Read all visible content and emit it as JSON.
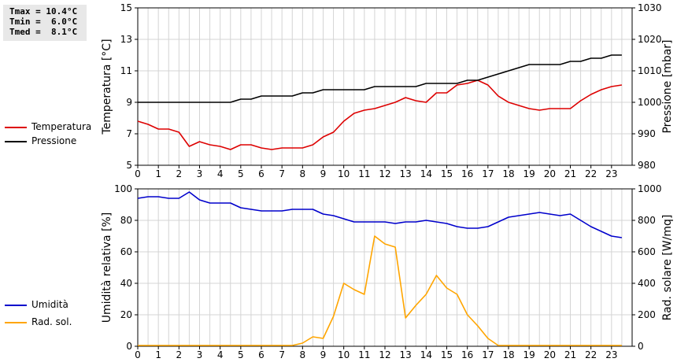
{
  "stats": {
    "tmax": "Tmax = 10.4°C",
    "tmin": "Tmin =  6.0°C",
    "tmed": "Tmed =  8.1°C"
  },
  "legend_top": [
    {
      "label": "Temperatura",
      "color": "#dd0000"
    },
    {
      "label": "Pressione",
      "color": "#000000"
    }
  ],
  "legend_bottom": [
    {
      "label": "Umidità",
      "color": "#0000cc"
    },
    {
      "label": "Rad. sol.",
      "color": "#ffa500"
    }
  ],
  "chart_data": [
    {
      "type": "line",
      "ylabel_left": "Temperatura [°C]",
      "ylabel_right": "Pressione [mbar]",
      "xlim": [
        0,
        24
      ],
      "xticks": [
        0,
        1,
        2,
        3,
        4,
        5,
        6,
        7,
        8,
        9,
        10,
        11,
        12,
        13,
        14,
        15,
        16,
        17,
        18,
        19,
        20,
        21,
        22,
        23
      ],
      "ylim_left": [
        5,
        15
      ],
      "yticks_left": [
        5,
        7,
        9,
        11,
        13,
        15
      ],
      "ylim_right": [
        980,
        1030
      ],
      "yticks_right": [
        980,
        990,
        1000,
        1010,
        1020,
        1030
      ],
      "grid": true,
      "series": [
        {
          "name": "Temperatura",
          "axis": "left",
          "color": "#dd0000",
          "x": [
            0,
            0.5,
            1,
            1.5,
            2,
            2.5,
            3,
            3.5,
            4,
            4.5,
            5,
            5.5,
            6,
            6.5,
            7,
            7.5,
            8,
            8.5,
            9,
            9.5,
            10,
            10.5,
            11,
            11.5,
            12,
            12.5,
            13,
            13.5,
            14,
            14.5,
            15,
            15.5,
            16,
            16.5,
            17,
            17.5,
            18,
            18.5,
            19,
            19.5,
            20,
            20.5,
            21,
            21.5,
            22,
            22.5,
            23,
            23.5
          ],
          "y": [
            7.8,
            7.6,
            7.3,
            7.3,
            7.1,
            6.2,
            6.5,
            6.3,
            6.2,
            6.0,
            6.3,
            6.3,
            6.1,
            6.0,
            6.1,
            6.1,
            6.1,
            6.3,
            6.8,
            7.1,
            7.8,
            8.3,
            8.5,
            8.6,
            8.8,
            9.0,
            9.3,
            9.1,
            9.0,
            9.6,
            9.6,
            10.1,
            10.2,
            10.4,
            10.1,
            9.4,
            9.0,
            8.8,
            8.6,
            8.5,
            8.6,
            8.6,
            8.6,
            9.1,
            9.5,
            9.8,
            10.0,
            10.1
          ]
        },
        {
          "name": "Pressione",
          "axis": "right",
          "color": "#000000",
          "x": [
            0,
            0.5,
            1,
            1.5,
            2,
            2.5,
            3,
            3.5,
            4,
            4.5,
            5,
            5.5,
            6,
            6.5,
            7,
            7.5,
            8,
            8.5,
            9,
            9.5,
            10,
            10.5,
            11,
            11.5,
            12,
            12.5,
            13,
            13.5,
            14,
            14.5,
            15,
            15.5,
            16,
            16.5,
            17,
            17.5,
            18,
            18.5,
            19,
            19.5,
            20,
            20.5,
            21,
            21.5,
            22,
            22.5,
            23,
            23.5
          ],
          "y": [
            1000,
            1000,
            1000,
            1000,
            1000,
            1000,
            1000,
            1000,
            1000,
            1000,
            1001,
            1001,
            1002,
            1002,
            1002,
            1002,
            1003,
            1003,
            1004,
            1004,
            1004,
            1004,
            1004,
            1005,
            1005,
            1005,
            1005,
            1005,
            1006,
            1006,
            1006,
            1006,
            1007,
            1007,
            1008,
            1009,
            1010,
            1011,
            1012,
            1012,
            1012,
            1012,
            1013,
            1013,
            1014,
            1014,
            1015,
            1015
          ]
        }
      ]
    },
    {
      "type": "line",
      "ylabel_left": "Umidità relativa [%]",
      "ylabel_right": "Rad. solare [W/mq]",
      "xlim": [
        0,
        24
      ],
      "xticks": [
        0,
        1,
        2,
        3,
        4,
        5,
        6,
        7,
        8,
        9,
        10,
        11,
        12,
        13,
        14,
        15,
        16,
        17,
        18,
        19,
        20,
        21,
        22,
        23
      ],
      "ylim_left": [
        0,
        100
      ],
      "yticks_left": [
        0,
        20,
        40,
        60,
        80,
        100
      ],
      "ylim_right": [
        0,
        1000
      ],
      "yticks_right": [
        0,
        200,
        400,
        600,
        800,
        1000
      ],
      "grid": true,
      "series": [
        {
          "name": "Umidità",
          "axis": "left",
          "color": "#0000cc",
          "x": [
            0,
            0.5,
            1,
            1.5,
            2,
            2.5,
            3,
            3.5,
            4,
            4.5,
            5,
            5.5,
            6,
            6.5,
            7,
            7.5,
            8,
            8.5,
            9,
            9.5,
            10,
            10.5,
            11,
            11.5,
            12,
            12.5,
            13,
            13.5,
            14,
            14.5,
            15,
            15.5,
            16,
            16.5,
            17,
            17.5,
            18,
            18.5,
            19,
            19.5,
            20,
            20.5,
            21,
            21.5,
            22,
            22.5,
            23,
            23.5
          ],
          "y": [
            94,
            95,
            95,
            94,
            94,
            98,
            93,
            91,
            91,
            91,
            88,
            87,
            86,
            86,
            86,
            87,
            87,
            87,
            84,
            83,
            81,
            79,
            79,
            79,
            79,
            78,
            79,
            79,
            80,
            79,
            78,
            76,
            75,
            75,
            76,
            79,
            82,
            83,
            84,
            85,
            84,
            83,
            84,
            80,
            76,
            73,
            70,
            69
          ]
        },
        {
          "name": "Rad. sol.",
          "axis": "right",
          "color": "#ffa500",
          "x": [
            0,
            1,
            2,
            3,
            4,
            5,
            6,
            7,
            7.5,
            8,
            8.5,
            9,
            9.5,
            10,
            10.5,
            11,
            11.5,
            12,
            12.5,
            13,
            13.5,
            14,
            14.5,
            15,
            15.5,
            16,
            16.5,
            17,
            17.5,
            18,
            19,
            20,
            21,
            22,
            23,
            23.5
          ],
          "y": [
            5,
            5,
            5,
            5,
            5,
            5,
            5,
            5,
            5,
            20,
            60,
            50,
            190,
            400,
            360,
            330,
            700,
            650,
            630,
            180,
            260,
            330,
            450,
            370,
            330,
            200,
            130,
            50,
            5,
            5,
            5,
            5,
            5,
            5,
            5,
            5
          ]
        }
      ]
    }
  ]
}
